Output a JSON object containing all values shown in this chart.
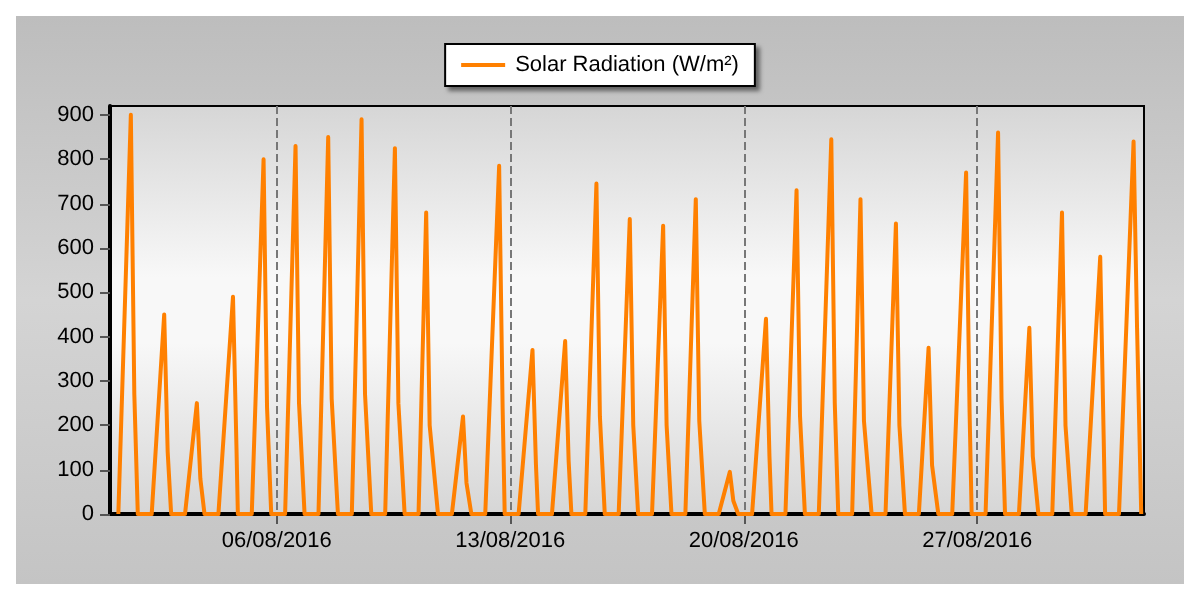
{
  "chart_data": {
    "type": "line",
    "x": [
      "2016-08-01T06:00",
      "2016-08-01T15:00",
      "2016-08-01T17:30",
      "2016-08-01T20:00",
      "2016-08-02T06:00",
      "2016-08-02T15:00",
      "2016-08-02T17:30",
      "2016-08-02T20:00",
      "2016-08-03T06:00",
      "2016-08-03T14:30",
      "2016-08-03T17:00",
      "2016-08-03T20:00",
      "2016-08-04T06:00",
      "2016-08-04T16:30",
      "2016-08-04T19:00",
      "2016-08-04T20:00",
      "2016-08-05T06:00",
      "2016-08-05T14:30",
      "2016-08-05T17:00",
      "2016-08-05T20:00",
      "2016-08-06T06:00",
      "2016-08-06T13:30",
      "2016-08-06T16:00",
      "2016-08-06T20:00",
      "2016-08-07T06:00",
      "2016-08-07T13:00",
      "2016-08-07T15:30",
      "2016-08-07T20:00",
      "2016-08-08T06:00",
      "2016-08-08T13:00",
      "2016-08-08T15:30",
      "2016-08-08T20:00",
      "2016-08-09T06:00",
      "2016-08-09T13:00",
      "2016-08-09T15:30",
      "2016-08-09T20:00",
      "2016-08-10T06:00",
      "2016-08-10T11:30",
      "2016-08-10T14:00",
      "2016-08-10T20:00",
      "2016-08-11T06:00",
      "2016-08-11T14:00",
      "2016-08-11T16:30",
      "2016-08-11T20:00",
      "2016-08-12T06:00",
      "2016-08-12T16:00",
      "2016-08-12T18:30",
      "2016-08-12T20:00",
      "2016-08-13T06:00",
      "2016-08-13T16:00",
      "2016-08-13T18:30",
      "2016-08-13T20:00",
      "2016-08-14T06:00",
      "2016-08-14T15:30",
      "2016-08-14T18:00",
      "2016-08-14T20:00",
      "2016-08-15T06:00",
      "2016-08-15T14:00",
      "2016-08-15T16:30",
      "2016-08-15T20:00",
      "2016-08-16T06:00",
      "2016-08-16T14:00",
      "2016-08-16T16:30",
      "2016-08-16T20:00",
      "2016-08-17T06:00",
      "2016-08-17T14:00",
      "2016-08-17T16:30",
      "2016-08-17T20:00",
      "2016-08-18T06:00",
      "2016-08-18T13:30",
      "2016-08-18T16:00",
      "2016-08-18T20:00",
      "2016-08-19T06:00",
      "2016-08-19T14:00",
      "2016-08-19T16:30",
      "2016-08-19T20:00",
      "2016-08-20T06:00",
      "2016-08-20T16:00",
      "2016-08-20T18:30",
      "2016-08-20T20:00",
      "2016-08-21T06:00",
      "2016-08-21T14:00",
      "2016-08-21T16:30",
      "2016-08-21T20:00",
      "2016-08-22T06:00",
      "2016-08-22T15:00",
      "2016-08-22T17:30",
      "2016-08-22T20:00",
      "2016-08-23T06:00",
      "2016-08-23T12:00",
      "2016-08-23T14:30",
      "2016-08-23T20:00",
      "2016-08-24T06:00",
      "2016-08-24T13:30",
      "2016-08-24T16:00",
      "2016-08-24T20:00",
      "2016-08-25T06:00",
      "2016-08-25T13:00",
      "2016-08-25T15:30",
      "2016-08-25T20:00",
      "2016-08-26T06:00",
      "2016-08-26T16:00",
      "2016-08-26T18:30",
      "2016-08-26T20:00",
      "2016-08-27T06:00",
      "2016-08-27T15:00",
      "2016-08-27T17:30",
      "2016-08-27T20:00",
      "2016-08-28T06:00",
      "2016-08-28T13:30",
      "2016-08-28T16:00",
      "2016-08-28T20:00",
      "2016-08-29T06:00",
      "2016-08-29T13:00",
      "2016-08-29T15:30",
      "2016-08-29T20:00",
      "2016-08-30T06:00",
      "2016-08-30T16:30",
      "2016-08-30T19:00",
      "2016-08-30T20:00",
      "2016-08-31T06:00",
      "2016-08-31T16:30",
      "2016-08-31T19:00",
      "2016-08-31T22:00"
    ],
    "series": [
      {
        "name": "Solar Radiation (W/m²)",
        "color": "#ff8000",
        "values": [
          0,
          900,
          270,
          0,
          0,
          450,
          140,
          0,
          0,
          250,
          80,
          0,
          0,
          490,
          150,
          0,
          0,
          800,
          240,
          0,
          0,
          830,
          250,
          0,
          0,
          850,
          260,
          0,
          0,
          890,
          270,
          0,
          0,
          825,
          250,
          0,
          0,
          680,
          200,
          0,
          0,
          220,
          70,
          0,
          0,
          785,
          240,
          0,
          0,
          370,
          110,
          0,
          0,
          390,
          120,
          0,
          0,
          745,
          220,
          0,
          0,
          665,
          200,
          0,
          0,
          650,
          200,
          0,
          0,
          710,
          210,
          0,
          0,
          95,
          30,
          0,
          0,
          440,
          130,
          0,
          0,
          730,
          220,
          0,
          0,
          845,
          250,
          0,
          0,
          710,
          210,
          0,
          0,
          655,
          200,
          0,
          0,
          375,
          110,
          0,
          0,
          770,
          230,
          0,
          0,
          860,
          260,
          0,
          0,
          420,
          130,
          0,
          0,
          680,
          200,
          0,
          0,
          580,
          170,
          0,
          0,
          840,
          420,
          0
        ]
      }
    ],
    "xlim": [
      "2016-08-01",
      "2016-09-01"
    ],
    "xticks": [
      {
        "value": "2016-08-06",
        "label": "06/08/2016"
      },
      {
        "value": "2016-08-13",
        "label": "13/08/2016"
      },
      {
        "value": "2016-08-20",
        "label": "20/08/2016"
      },
      {
        "value": "2016-08-27",
        "label": "27/08/2016"
      }
    ],
    "ylim": [
      0,
      920
    ],
    "yticks": [
      0,
      100,
      200,
      300,
      400,
      500,
      600,
      700,
      800,
      900
    ],
    "grid": "x",
    "legend": "top",
    "marker": "none",
    "line_style": "solid"
  }
}
